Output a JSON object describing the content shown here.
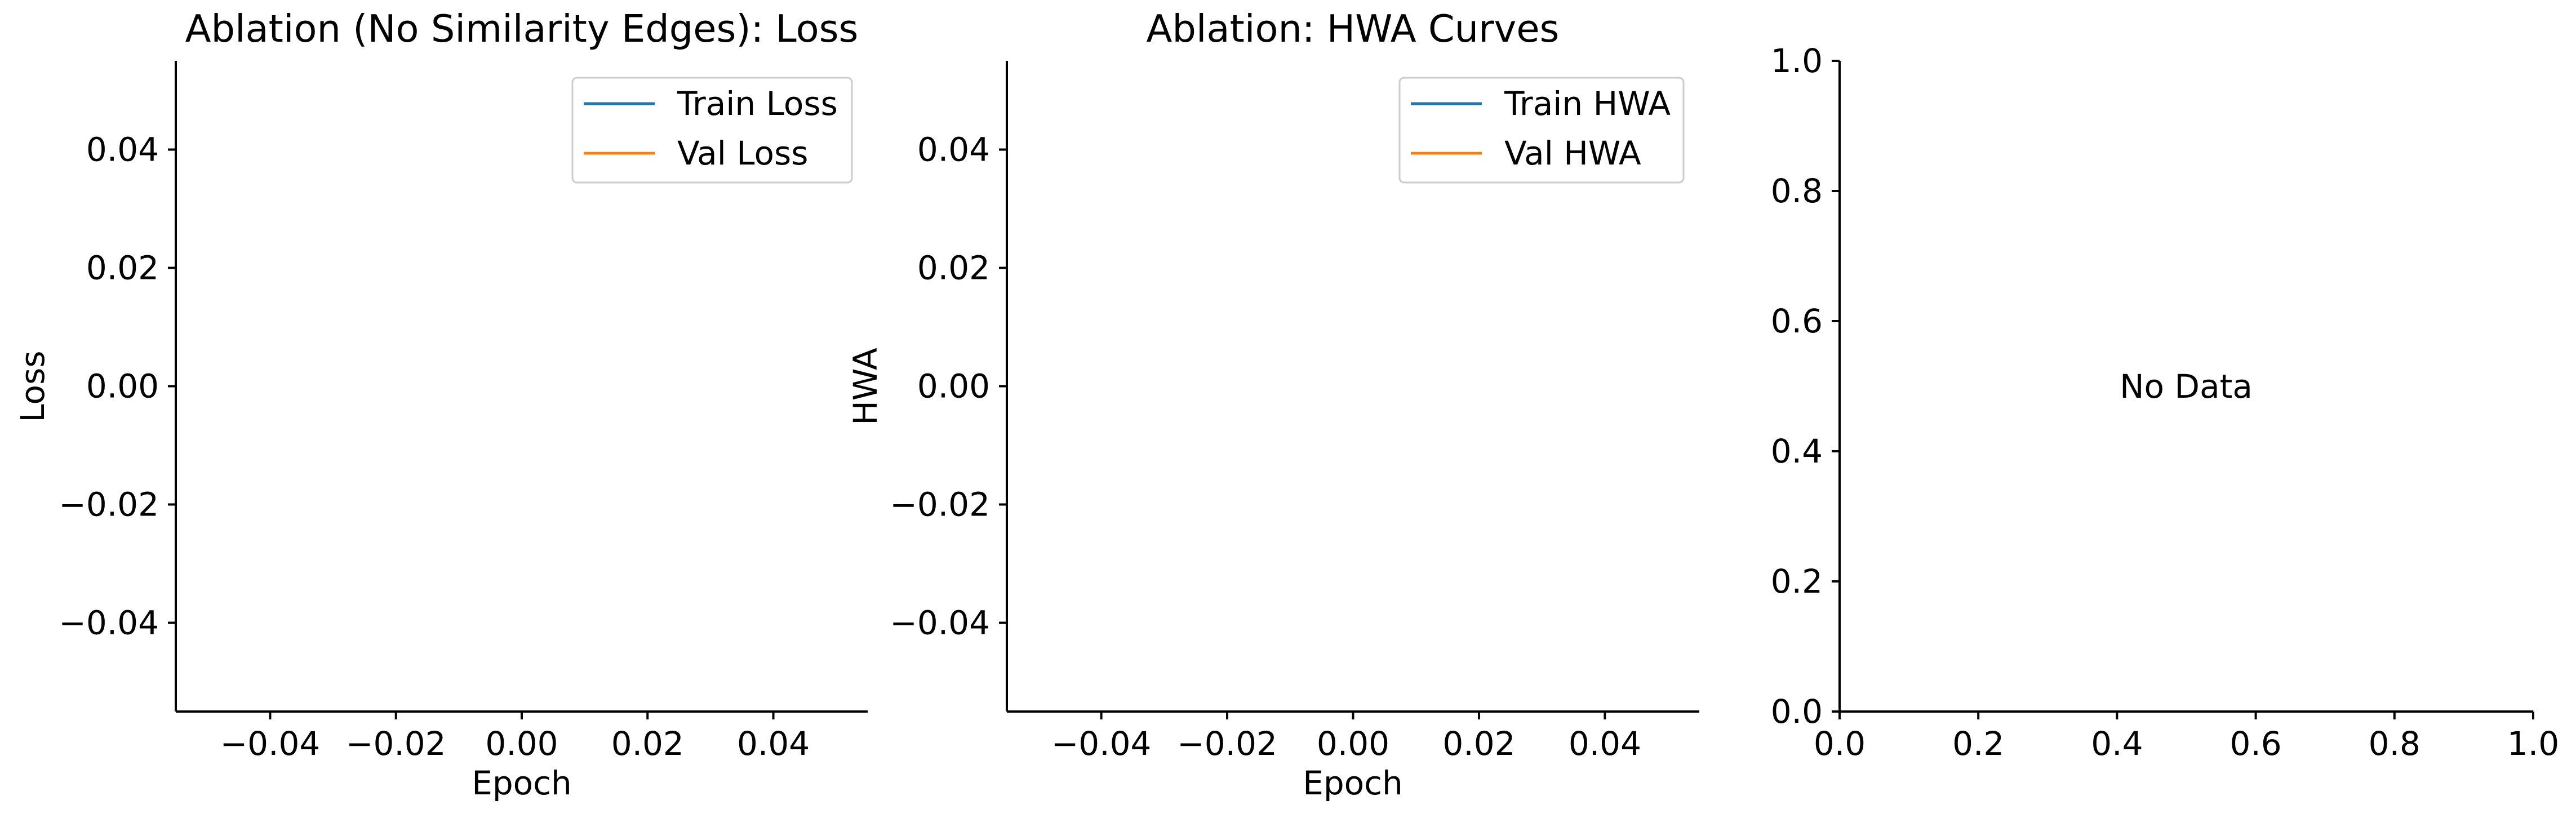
{
  "chart_data": [
    {
      "type": "line",
      "title": "Ablation (No Similarity Edges): Loss",
      "xlabel": "Epoch",
      "ylabel": "Loss",
      "xlim": [
        -0.055,
        0.055
      ],
      "ylim": [
        -0.055,
        0.055
      ],
      "x_ticks": [
        -0.04,
        -0.02,
        0.0,
        0.02,
        0.04
      ],
      "x_tick_labels": [
        "−0.04",
        "−0.02",
        "0.00",
        "0.02",
        "0.04"
      ],
      "y_ticks": [
        0.04,
        0.02,
        0.0,
        -0.02,
        -0.04
      ],
      "y_tick_labels": [
        "0.04",
        "0.02",
        "0.00",
        "−0.02",
        "−0.04"
      ],
      "grid": false,
      "legend_position": "upper-right",
      "series": [
        {
          "name": "Train Loss",
          "color": "#1f77b4",
          "x": [],
          "y": []
        },
        {
          "name": "Val Loss",
          "color": "#ff7f0e",
          "x": [],
          "y": []
        }
      ]
    },
    {
      "type": "line",
      "title": "Ablation: HWA Curves",
      "xlabel": "Epoch",
      "ylabel": "HWA",
      "xlim": [
        -0.055,
        0.055
      ],
      "ylim": [
        -0.055,
        0.055
      ],
      "x_ticks": [
        -0.04,
        -0.02,
        0.0,
        0.02,
        0.04
      ],
      "x_tick_labels": [
        "−0.04",
        "−0.02",
        "0.00",
        "0.02",
        "0.04"
      ],
      "y_ticks": [
        0.04,
        0.02,
        0.0,
        -0.02,
        -0.04
      ],
      "y_tick_labels": [
        "0.04",
        "0.02",
        "0.00",
        "−0.02",
        "−0.04"
      ],
      "grid": false,
      "legend_position": "upper-right",
      "series": [
        {
          "name": "Train HWA",
          "color": "#1f77b4",
          "x": [],
          "y": []
        },
        {
          "name": "Val HWA",
          "color": "#ff7f0e",
          "x": [],
          "y": []
        }
      ]
    },
    {
      "type": "line",
      "title": "",
      "xlabel": "",
      "ylabel": "",
      "xlim": [
        0.0,
        1.0
      ],
      "ylim": [
        0.0,
        1.0
      ],
      "x_ticks": [
        0.0,
        0.2,
        0.4,
        0.6,
        0.8,
        1.0
      ],
      "x_tick_labels": [
        "0.0",
        "0.2",
        "0.4",
        "0.6",
        "0.8",
        "1.0"
      ],
      "y_ticks": [
        1.0,
        0.8,
        0.6,
        0.4,
        0.2,
        0.0
      ],
      "y_tick_labels": [
        "1.0",
        "0.8",
        "0.6",
        "0.4",
        "0.2",
        "0.0"
      ],
      "grid": false,
      "annotation": {
        "text": "No Data",
        "x": 0.5,
        "y": 0.5
      },
      "series": []
    }
  ]
}
